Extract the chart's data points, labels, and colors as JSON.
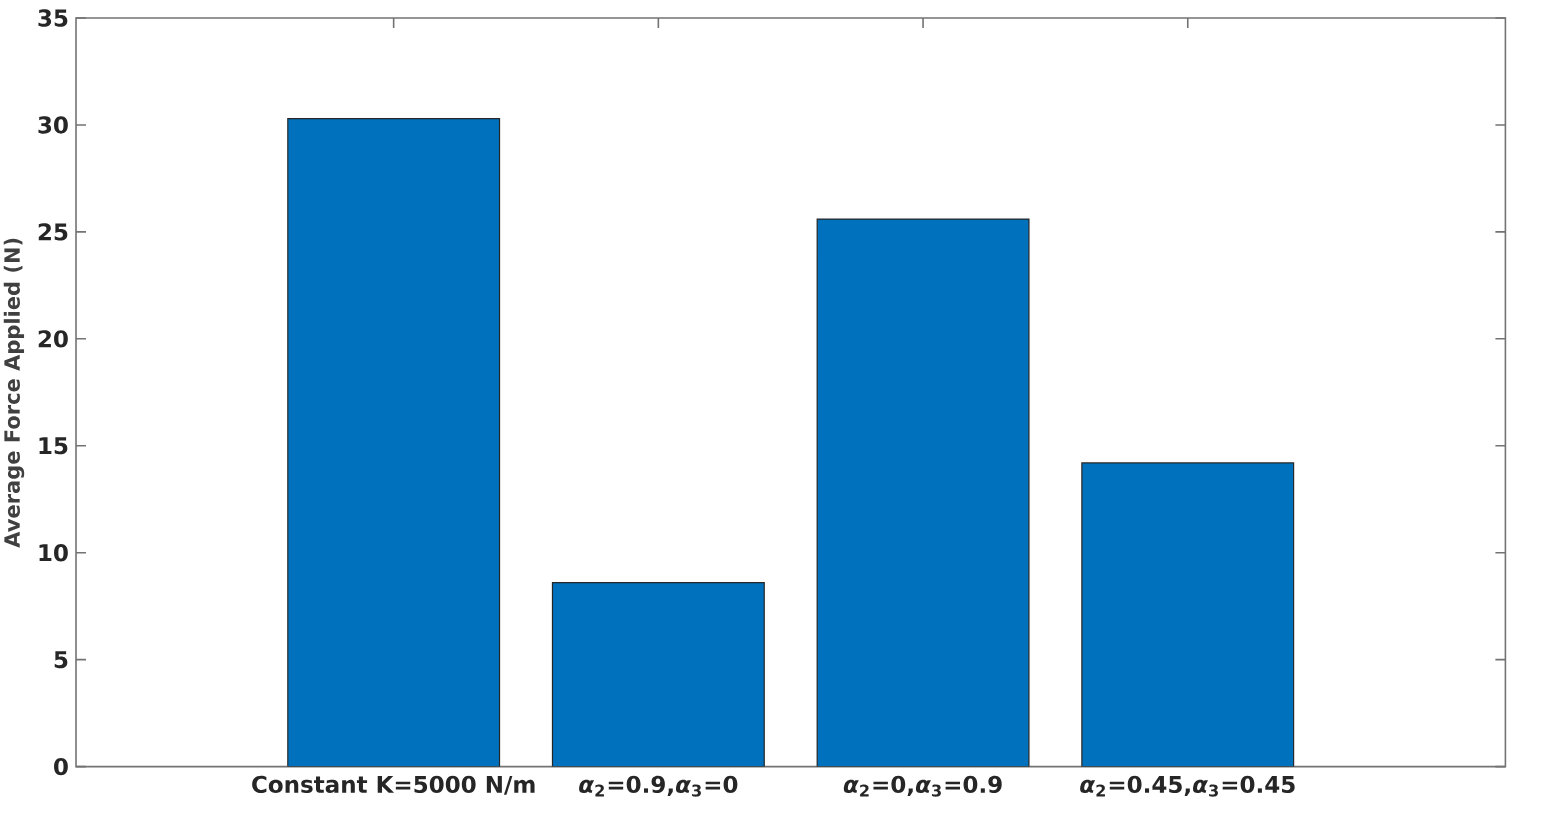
{
  "chart_data": {
    "type": "bar",
    "categories": [
      "Constant K=5000 N/m",
      "*α*$_{2}$=0.9,*α*$_{3}$=0",
      "*α*$_{2}$=0,*α*$_{3}$=0.9",
      "*α*$_{2}$=0.45,*α*$_{3}$=0.45"
    ],
    "values": [
      30.3,
      8.6,
      25.6,
      14.2
    ],
    "color": "#0072bd",
    "ylabel": "Average Force Applied (N)",
    "ylim": [
      0,
      35
    ],
    "yticks": [
      0,
      5,
      10,
      15,
      20,
      25,
      30,
      35
    ]
  }
}
